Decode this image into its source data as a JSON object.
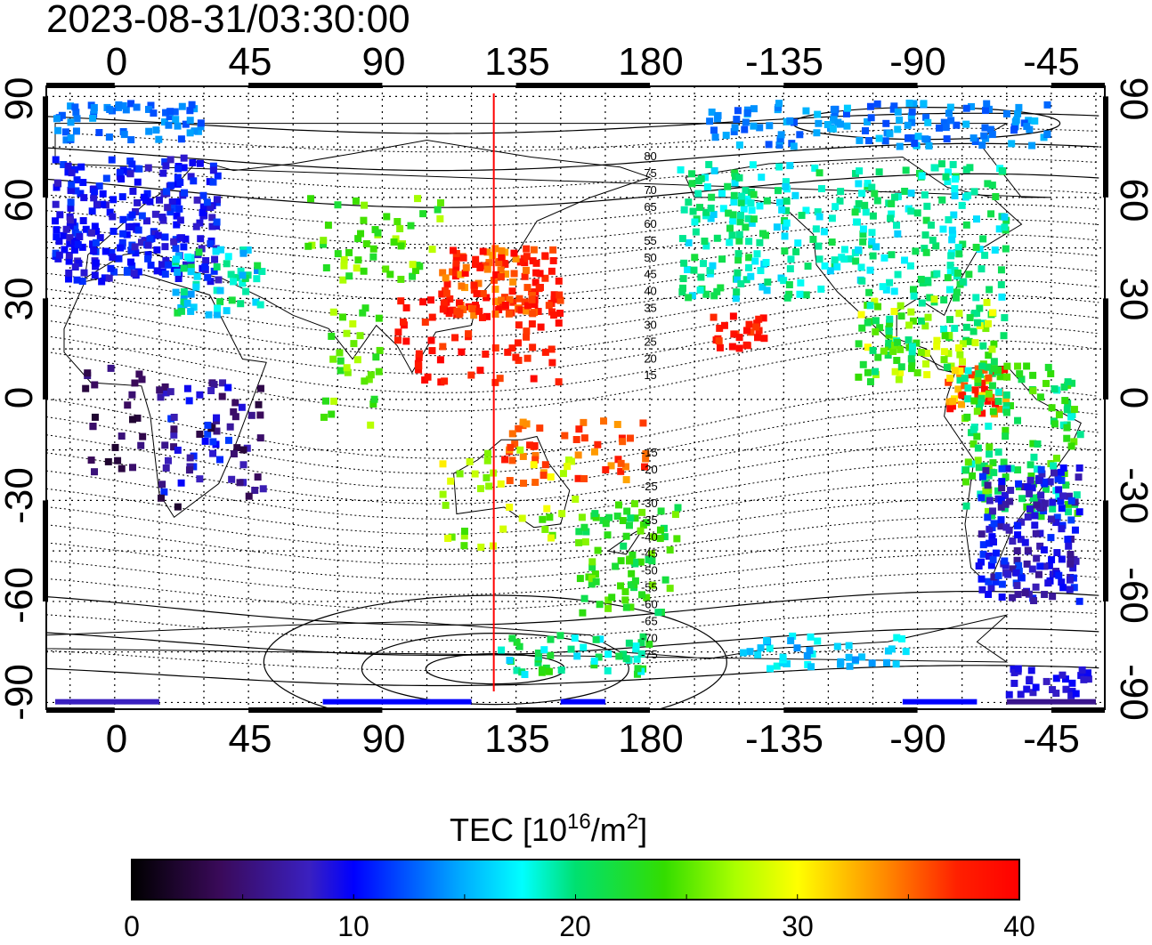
{
  "timestamp": "2023-08-31/03:30:00",
  "lon_ticks": [
    "0",
    "45",
    "90",
    "135",
    "180",
    "-135",
    "-90",
    "-45"
  ],
  "lat_ticks_left": [
    "90",
    "60",
    "30",
    "0",
    "-30",
    "-60",
    "-90"
  ],
  "lat_ticks_right": [
    "90",
    "60",
    "30",
    "0",
    "-30",
    "-60",
    "-90"
  ],
  "contour_labels_north": [
    "80",
    "75",
    "70",
    "65",
    "60",
    "55",
    "50",
    "45",
    "40",
    "35",
    "30",
    "25",
    "20",
    "15"
  ],
  "contour_labels_south": [
    "-15",
    "-20",
    "-25",
    "-30",
    "-35",
    "-40",
    "-45",
    "-50",
    "-55",
    "-60",
    "-65",
    "-70",
    "-75"
  ],
  "colorbar": {
    "title": "TEC  [10",
    "title_exp": "16",
    "title_mid": "/m",
    "title_exp2": "2",
    "title_end": "]",
    "ticks": [
      "0",
      "10",
      "20",
      "30",
      "40"
    ],
    "min": 0,
    "max": 40
  },
  "sun_meridian_lon": 127.5,
  "map_lon_range": [
    -23,
    333
  ],
  "map_lat_range": [
    -92,
    93
  ],
  "colors": {
    "meridian": "#ff0000",
    "background": "#ffffff"
  }
}
